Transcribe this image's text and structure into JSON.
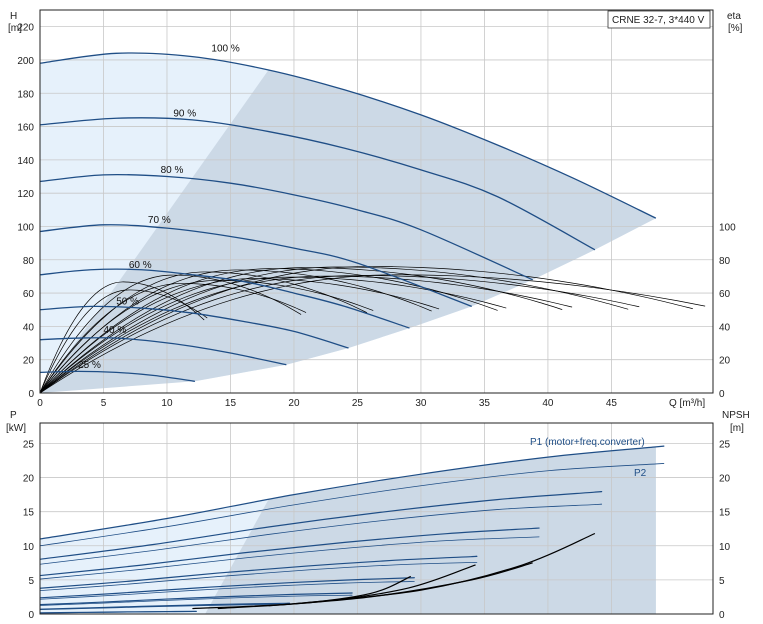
{
  "chart_data": [
    {
      "type": "line",
      "title": "CRNE 32-7, 3*440 V",
      "xlabel": "Q [m³/h]",
      "ylabel": "H",
      "ylabel_unit": "[m]",
      "y2label": "eta",
      "y2label_unit": "[%]",
      "xlim": [
        0,
        53
      ],
      "ylim": [
        0,
        230
      ],
      "y2lim": [
        0,
        230
      ],
      "x_ticks": [
        0,
        5,
        10,
        15,
        20,
        25,
        30,
        35,
        40,
        45
      ],
      "x_tick_labels": [
        "0",
        "5",
        "10",
        "15",
        "20",
        "25",
        "30",
        "35",
        "40",
        "45"
      ],
      "y_ticks": [
        0,
        20,
        40,
        60,
        80,
        100,
        120,
        140,
        160,
        180,
        200,
        220
      ],
      "y_tick_labels": [
        "0",
        "20",
        "40",
        "60",
        "80",
        "100",
        "120",
        "140",
        "160",
        "180",
        "200",
        "220"
      ],
      "y2_ticks": [
        0,
        20,
        40,
        60,
        80,
        100
      ],
      "y2_tick_labels": [
        "0",
        "20",
        "40",
        "60",
        "80",
        "100"
      ],
      "grid": true,
      "colors": {
        "head_curve": "#1f4e86",
        "eff_curve": "#000000",
        "region_light": "#e6f1fb",
        "region_dark": "#ccd9e6",
        "grid": "#c8c8c8"
      },
      "series": [
        {
          "name": "100 %",
          "speed": 1.0,
          "x": [
            0,
            6,
            12,
            18,
            24,
            30,
            36,
            42,
            48.5
          ],
          "y": [
            198,
            204,
            202,
            194,
            182,
            167,
            149,
            129,
            105
          ]
        },
        {
          "name": "90 %",
          "speed": 0.9,
          "x": [
            0,
            6,
            12,
            18,
            24,
            30,
            36,
            43.7
          ],
          "y": [
            161,
            165,
            164,
            157,
            147,
            134,
            118,
            86
          ]
        },
        {
          "name": "80 %",
          "speed": 0.8,
          "x": [
            0,
            5,
            10,
            15,
            20,
            25,
            30,
            38.8
          ],
          "y": [
            127,
            131,
            130,
            126,
            119,
            110,
            98,
            68
          ]
        },
        {
          "name": "70 %",
          "speed": 0.7,
          "x": [
            0,
            5,
            10,
            15,
            20,
            25,
            34
          ],
          "y": [
            97,
            101,
            99,
            94,
            87,
            78,
            52
          ]
        },
        {
          "name": "60 %",
          "speed": 0.6,
          "x": [
            0,
            4,
            8,
            12,
            16,
            20,
            24,
            29.1
          ],
          "y": [
            71,
            74,
            74,
            71,
            67,
            60,
            52,
            39
          ]
        },
        {
          "name": "50 %",
          "speed": 0.5,
          "x": [
            0,
            4,
            8,
            12,
            16,
            20,
            24.3
          ],
          "y": [
            50,
            52,
            51,
            48,
            43,
            37,
            27
          ]
        },
        {
          "name": "40 %",
          "speed": 0.4,
          "x": [
            0,
            3,
            6,
            9,
            12,
            15,
            19.4
          ],
          "y": [
            32,
            33,
            33,
            31,
            28,
            24,
            17
          ]
        },
        {
          "name": "25 %",
          "speed": 0.25,
          "x": [
            0,
            3,
            6,
            9,
            12.2
          ],
          "y": [
            12.4,
            13,
            12.4,
            10.5,
            7
          ]
        }
      ],
      "efficiency_curves": {
        "p1_peak": [
          {
            "x": 26,
            "y": 76
          },
          {
            "x": 23.4,
            "y": 75.7
          },
          {
            "x": 20.8,
            "y": 75.3
          },
          {
            "x": 18.2,
            "y": 74.7
          },
          {
            "x": 15.6,
            "y": 73.9
          },
          {
            "x": 13,
            "y": 72.7
          },
          {
            "x": 10.4,
            "y": 70.8
          },
          {
            "x": 6.5,
            "y": 66.7
          }
        ],
        "p2_peak": [
          {
            "x": 28,
            "y": 71
          },
          {
            "x": 25.2,
            "y": 70.6
          },
          {
            "x": 22.4,
            "y": 70.2
          },
          {
            "x": 19.6,
            "y": 69.6
          },
          {
            "x": 16.8,
            "y": 68.7
          },
          {
            "x": 14,
            "y": 67.6
          },
          {
            "x": 11.2,
            "y": 65.8
          },
          {
            "x": 7,
            "y": 61.9
          }
        ]
      }
    },
    {
      "type": "line",
      "ylabel": "P",
      "ylabel_unit": "[kW]",
      "y2label": "NPSH",
      "y2label_unit": "[m]",
      "xlim": [
        0,
        53
      ],
      "ylim": [
        0,
        28
      ],
      "y2lim": [
        0,
        28
      ],
      "y_ticks": [
        0,
        5,
        10,
        15,
        20,
        25
      ],
      "y_tick_labels": [
        "0",
        "5",
        "10",
        "15",
        "20",
        "25"
      ],
      "y2_ticks": [
        0,
        5,
        10,
        15,
        20,
        25
      ],
      "y2_tick_labels": [
        "0",
        "5",
        "10",
        "15",
        "20",
        "25"
      ],
      "grid": true,
      "annotations": [
        "P1 (motor+freq.converter)",
        "P2"
      ],
      "series": [
        {
          "name": "P1 (motor+freq.converter)",
          "speed": 1.0,
          "x": [
            0,
            10,
            20,
            30,
            40,
            48.5
          ],
          "y": [
            11,
            14,
            17.5,
            20.5,
            23,
            24.5
          ]
        },
        {
          "name": "P2",
          "speed": 1.0,
          "x": [
            0,
            10,
            20,
            30,
            40,
            48.5
          ],
          "y": [
            10,
            12.8,
            16,
            18.8,
            21,
            22
          ]
        }
      ],
      "npsh_curves": [
        {
          "x": [
            12,
            20,
            26,
            29.2
          ],
          "y": [
            0.8,
            1.5,
            3,
            5.5
          ]
        },
        {
          "x": [
            14,
            22,
            29,
            34.3
          ],
          "y": [
            0.8,
            1.8,
            3.8,
            7.2
          ]
        },
        {
          "x": [
            18,
            26,
            34,
            38.8
          ],
          "y": [
            1.2,
            2.5,
            5,
            7.5
          ]
        },
        {
          "x": [
            20,
            30,
            38,
            43.7
          ],
          "y": [
            1.5,
            3.5,
            7.2,
            11.8
          ]
        }
      ]
    }
  ],
  "labels": {
    "title": "CRNE 32-7, 3*440 V",
    "H": "H",
    "H_unit": "[m]",
    "eta": "eta",
    "eta_unit": "[%]",
    "Q": "Q [m³/h]",
    "P": "P",
    "P_unit": "[kW]",
    "NPSH": "NPSH",
    "NPSH_unit": "[m]",
    "p1": "P1 (motor+freq.converter)",
    "p2": "P2"
  }
}
